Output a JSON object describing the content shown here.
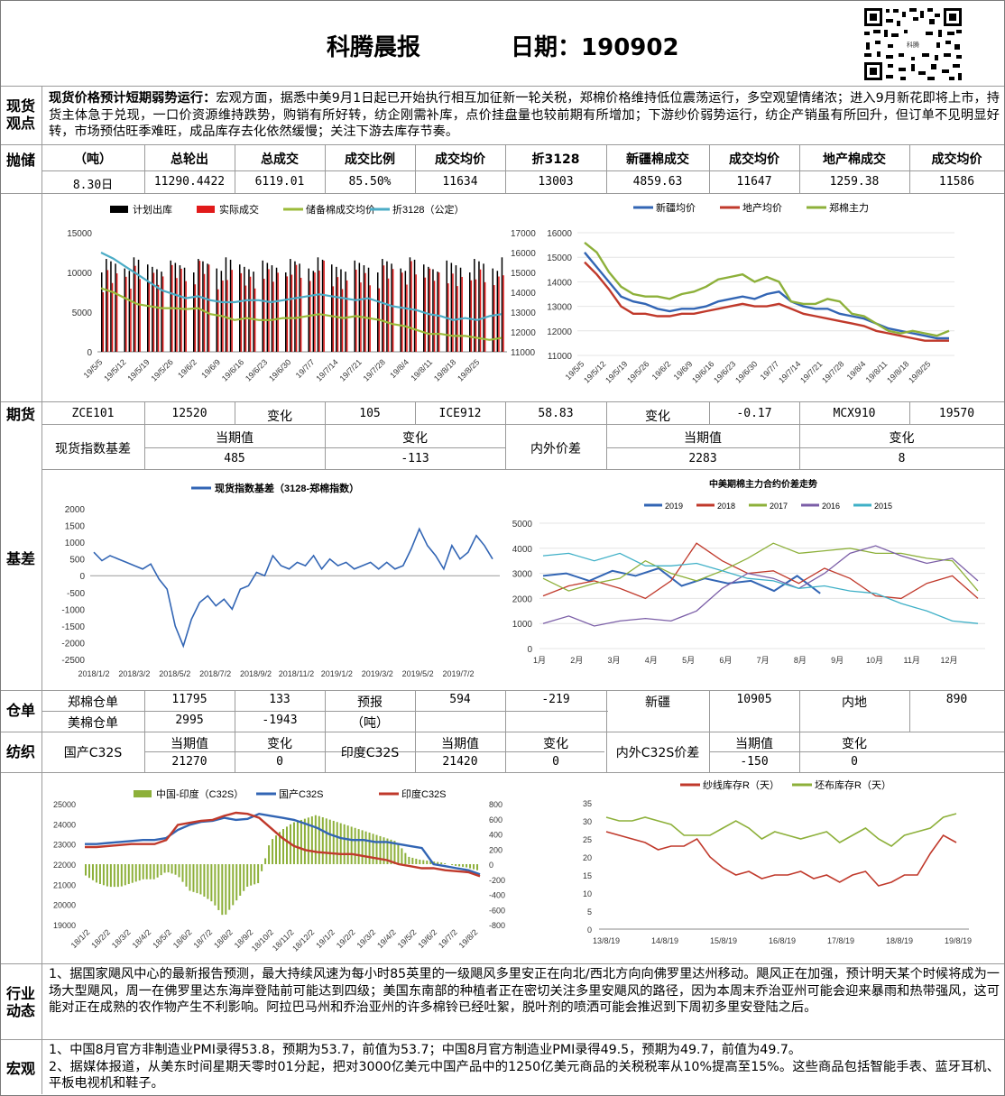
{
  "header": {
    "title": "科腾晨报",
    "date_label": "日期：",
    "date": "190902",
    "qr_caption": "科腾"
  },
  "sections": {
    "spot": [
      "现货",
      "观点"
    ],
    "storage": "抛储",
    "futures": "期货",
    "basis": "基差",
    "warrant": "仓单",
    "textile": "纺织",
    "industry": [
      "行业",
      "动态"
    ],
    "macro": "宏观"
  },
  "spot_view": {
    "bold": "现货价格预计短期弱势运行：",
    "text": "宏观方面，据悉中美9月1日起已开始执行相互加征新一轮关税，郑棉价格维持低位震荡运行，多空观望情绪浓；进入9月新花即将上市，持货主体急于兑现，一口价资源维持跌势，购销有所好转，纺企刚需补库，点价挂盘量也较前期有所增加；下游纱价弱势运行，纺企产销虽有所回升，但订单不见明显好转，市场预估旺季难旺，成品库存去化依然缓慢；关注下游去库存节奏。"
  },
  "storage": {
    "headers": [
      "（吨）",
      "总轮出",
      "总成交",
      "成交比例",
      "成交均价",
      "折3128",
      "新疆棉成交",
      "成交均价",
      "地产棉成交",
      "成交均价"
    ],
    "row": [
      "8.30日",
      "11290.4422",
      "6119.01",
      "85.50%",
      "11634",
      "13003",
      "4859.63",
      "11647",
      "1259.38",
      "11586"
    ]
  },
  "chart_data": [
    {
      "type": "bar",
      "legend": [
        "计划出库",
        "实际成交",
        "储备棉成交均价",
        "折3128（公定）"
      ],
      "x_ticks": [
        "19/5/5",
        "19/5/12",
        "19/5/19",
        "19/5/26",
        "19/6/2",
        "19/6/9",
        "19/6/16",
        "19/6/23",
        "19/6/30",
        "19/7/7",
        "19/7/14",
        "19/7/21",
        "19/7/28",
        "19/8/4",
        "19/8/11",
        "19/8/18",
        "19/8/25"
      ],
      "y_left": [
        0,
        5000,
        10000,
        15000
      ],
      "y_right": [
        11000,
        12000,
        13000,
        14000,
        15000,
        16000,
        17000
      ],
      "series": [
        {
          "name": "储备棉成交均价",
          "axis": "right",
          "values": [
            14200,
            14000,
            13700,
            13400,
            13300,
            13200,
            13200,
            13150,
            13200,
            12900,
            12800,
            12600,
            12700,
            12600,
            12600,
            12700,
            12700,
            12800,
            12900,
            12800,
            12700,
            12800,
            12700,
            12600,
            12400,
            12300,
            12100,
            11900,
            11900,
            11800,
            11800,
            11700,
            11600,
            11700
          ]
        },
        {
          "name": "折3128（公定）",
          "axis": "right",
          "values": [
            16000,
            15700,
            15300,
            14900,
            14500,
            14100,
            13900,
            13700,
            13800,
            13600,
            13500,
            13500,
            13600,
            13600,
            13500,
            13600,
            13700,
            13800,
            13900,
            13800,
            13700,
            13600,
            13700,
            13500,
            13300,
            13200,
            13100,
            12900,
            12800,
            12600,
            12700,
            12600,
            12800,
            12900
          ]
        }
      ]
    },
    {
      "type": "line",
      "legend": [
        "新疆均价",
        "地产均价",
        "郑棉主力"
      ],
      "x_ticks": [
        "19/5/5",
        "19/5/12",
        "19/5/19",
        "19/5/26",
        "19/6/2",
        "19/6/9",
        "19/6/16",
        "19/6/23",
        "19/6/30",
        "19/7/7",
        "19/7/14",
        "19/7/21",
        "19/7/28",
        "19/8/4",
        "19/8/11",
        "19/8/18",
        "19/8/25"
      ],
      "y": [
        11000,
        11500,
        12000,
        12500,
        13000,
        13500,
        14000,
        14500,
        15000,
        15500,
        16000
      ],
      "series": [
        {
          "name": "新疆均价",
          "values": [
            15200,
            14600,
            14000,
            13400,
            13200,
            13100,
            12900,
            12800,
            12900,
            12900,
            13000,
            13200,
            13300,
            13400,
            13300,
            13500,
            13600,
            13200,
            13000,
            12900,
            12900,
            12700,
            12600,
            12500,
            12300,
            12100,
            12000,
            11900,
            11800,
            11700,
            11700
          ]
        },
        {
          "name": "地产均价",
          "values": [
            14800,
            14300,
            13700,
            13000,
            12700,
            12700,
            12600,
            12600,
            12700,
            12700,
            12800,
            12900,
            13000,
            13100,
            13000,
            13000,
            13100,
            12900,
            12700,
            12600,
            12500,
            12400,
            12300,
            12200,
            12000,
            11900,
            11800,
            11700,
            11600,
            11600,
            11600
          ]
        },
        {
          "name": "郑棉主力",
          "values": [
            15600,
            15200,
            14400,
            13800,
            13500,
            13400,
            13400,
            13300,
            13500,
            13600,
            13800,
            14100,
            14200,
            14300,
            14000,
            14200,
            14000,
            13200,
            13100,
            13100,
            13300,
            13200,
            12700,
            12600,
            12300,
            12000,
            11900,
            12000,
            11900,
            11800,
            12000
          ]
        }
      ]
    },
    {
      "type": "line",
      "title": "现货指数基差（3128-郑棉指数）",
      "x_ticks": [
        "2018/1/2",
        "2018/3/2",
        "2018/5/2",
        "2018/7/2",
        "2018/9/2",
        "2018/11/2",
        "2019/1/2",
        "2019/3/2",
        "2019/5/2",
        "2019/7/2"
      ],
      "y": [
        -2500,
        -2000,
        -1500,
        -1000,
        -500,
        0,
        500,
        1000,
        1500,
        2000
      ],
      "series": [
        {
          "name": "现货指数基差（3128-郑棉指数）",
          "values": [
            700,
            450,
            600,
            500,
            400,
            300,
            200,
            350,
            -100,
            -400,
            -1500,
            -2100,
            -1300,
            -800,
            -600,
            -900,
            -700,
            -1000,
            -400,
            -300,
            100,
            0,
            600,
            300,
            200,
            400,
            300,
            600,
            200,
            500,
            300,
            400,
            200,
            300,
            400,
            200,
            400,
            200,
            300,
            800,
            1400,
            900,
            600,
            200,
            900,
            500,
            700,
            1200,
            900,
            500
          ]
        }
      ]
    },
    {
      "type": "line",
      "title": "中美期棉主力合约价差走势",
      "x_ticks": [
        "1月",
        "2月",
        "3月",
        "4月",
        "5月",
        "6月",
        "7月",
        "8月",
        "9月",
        "10月",
        "11月",
        "12月"
      ],
      "y": [
        0,
        1000,
        2000,
        3000,
        4000,
        5000
      ],
      "series": [
        {
          "name": "2019",
          "values": [
            2900,
            3000,
            2700,
            3100,
            2900,
            3200,
            2500,
            2800,
            2600,
            2700,
            2300,
            2900,
            2200
          ]
        },
        {
          "name": "2018",
          "values": [
            2100,
            2500,
            2700,
            2400,
            2000,
            2700,
            4200,
            3500,
            3000,
            3100,
            2600,
            3200,
            2800,
            2100,
            2000,
            2600,
            2900,
            2000
          ]
        },
        {
          "name": "2017",
          "values": [
            2800,
            2300,
            2600,
            2800,
            3500,
            3000,
            2700,
            3100,
            3600,
            4200,
            3800,
            3900,
            4000,
            3800,
            3800,
            3600,
            3500,
            2300
          ]
        },
        {
          "name": "2016",
          "values": [
            1000,
            1300,
            900,
            1100,
            1200,
            1100,
            1500,
            2400,
            3000,
            2800,
            2400,
            3000,
            3800,
            4100,
            3700,
            3400,
            3600,
            2700
          ]
        },
        {
          "name": "2015",
          "values": [
            3700,
            3800,
            3500,
            3800,
            3300,
            3300,
            3400,
            3100,
            2800,
            2700,
            2400,
            2500,
            2300,
            2200,
            1800,
            1500,
            1100,
            1000
          ]
        }
      ]
    },
    {
      "type": "bar",
      "legend": [
        "中国-印度（C32S）",
        "国产C32S",
        "印度C32S"
      ],
      "x_ticks": [
        "18/1/2",
        "18/2/2",
        "18/3/2",
        "18/4/2",
        "18/5/2",
        "18/6/2",
        "18/7/2",
        "18/8/2",
        "18/9/2",
        "18/10/2",
        "18/11/2",
        "18/12/2",
        "19/1/2",
        "19/2/2",
        "19/3/2",
        "19/4/2",
        "19/5/2",
        "19/6/2",
        "19/7/2",
        "19/8/2"
      ],
      "y_left": [
        19000,
        20000,
        21000,
        22000,
        23000,
        24000,
        25000
      ],
      "y_right": [
        -800,
        -600,
        -400,
        -200,
        0,
        200,
        400,
        600,
        800
      ],
      "series": [
        {
          "name": "国产C32S",
          "values": [
            23000,
            23000,
            23050,
            23100,
            23150,
            23200,
            23200,
            23300,
            23700,
            23950,
            24100,
            24150,
            24300,
            24200,
            24250,
            24500,
            24400,
            24300,
            24200,
            24000,
            23800,
            23500,
            23300,
            23200,
            23200,
            23100,
            23100,
            23000,
            22900,
            22800,
            22000,
            21900,
            21800,
            21700,
            21500
          ]
        },
        {
          "name": "印度C32S",
          "values": [
            22850,
            22850,
            22900,
            22950,
            23000,
            23000,
            23000,
            23200,
            23950,
            24050,
            24150,
            24200,
            24400,
            24550,
            24500,
            24300,
            23800,
            23300,
            22900,
            22700,
            22600,
            22550,
            22500,
            22500,
            22400,
            22300,
            22200,
            22000,
            21900,
            21800,
            21800,
            21700,
            21650,
            21600,
            21400
          ]
        },
        {
          "name": "中国-印度（C32S）",
          "values": [
            -150,
            -250,
            -300,
            -300,
            -250,
            -200,
            -200,
            -100,
            -150,
            -350,
            -400,
            -500,
            -700,
            -500,
            -300,
            -250,
            300,
            450,
            550,
            600,
            650,
            600,
            550,
            500,
            450,
            400,
            350,
            300,
            100,
            60,
            40,
            20,
            -20,
            -40,
            -80
          ]
        }
      ]
    },
    {
      "type": "line",
      "legend": [
        "纱线库存R（天）",
        "坯布库存R（天）"
      ],
      "x_ticks": [
        "13/8/19",
        "14/8/19",
        "15/8/19",
        "16/8/19",
        "17/8/19",
        "18/8/19",
        "19/8/19"
      ],
      "y": [
        0,
        5,
        10,
        15,
        20,
        25,
        30,
        35
      ],
      "series": [
        {
          "name": "纱线库存R（天）",
          "values": [
            27,
            26,
            25,
            24,
            22,
            23,
            23,
            25,
            20,
            17,
            15,
            16,
            14,
            15,
            15,
            16,
            14,
            15,
            13,
            15,
            16,
            12,
            13,
            15,
            15,
            21,
            26,
            24
          ]
        },
        {
          "name": "坯布库存R（天）",
          "values": [
            31,
            30,
            30,
            31,
            30,
            29,
            26,
            26,
            26,
            28,
            30,
            28,
            25,
            27,
            26,
            25,
            26,
            27,
            24,
            26,
            28,
            25,
            23,
            26,
            27,
            28,
            31,
            32
          ]
        }
      ]
    }
  ],
  "futures": {
    "row": [
      "ZCE101",
      "12520",
      "变化",
      "105",
      "ICE912",
      "58.83",
      "变化",
      "-0.17",
      "MCX910",
      "19570"
    ],
    "basis_label": "现货指数基差",
    "cur": "当期值",
    "chg": "变化",
    "basis_cur": "485",
    "basis_chg": "-113",
    "spread_label": "内外价差",
    "spread_cur": "2283",
    "spread_chg": "8"
  },
  "warrant": {
    "row1": [
      "郑棉仓单",
      "11795",
      "133",
      "预报",
      "594",
      "-219",
      "新疆",
      "10905",
      "内地",
      "890"
    ],
    "row2": [
      "美棉仓单",
      "2995",
      "-1943",
      "（吨）"
    ]
  },
  "textile": {
    "row1": [
      "国产C32S",
      "当期值",
      "变化",
      "印度C32S",
      "当期值",
      "变化",
      "内外C32S价差",
      "当期值",
      "变化"
    ],
    "row2": [
      "21270",
      "0",
      "21420",
      "0",
      "-150",
      "0"
    ]
  },
  "industry": "1、据国家飓风中心的最新报告预测，最大持续风速为每小时85英里的一级飓风多里安正在向北/西北方向向佛罗里达州移动。飓风正在加强，预计明天某个时候将成为一场大型飓风，周一在佛罗里达东海岸登陆前可能达到四级；美国东南部的种植者正在密切关注多里安飓风的路径，因为本周末乔治亚州可能会迎来暴雨和热带强风，这可能对正在成熟的农作物产生不利影响。阿拉巴马州和乔治亚州的许多棉铃已经吐絮，脱叶剂的喷洒可能会推迟到下周初多里安登陆之后。",
  "macro": [
    "1、中国8月官方非制造业PMI录得53.8，预期为53.7，前值为53.7；中国8月官方制造业PMI录得49.5，预期为49.7，前值为49.7。",
    "2、据媒体报道，从美东时间星期天零时01分起，把对3000亿美元中国产品中的1250亿美元商品的关税税率从10%提高至15%。这些商品包括智能手表、蓝牙耳机、平板电视机和鞋子。"
  ],
  "colors": {
    "black": "#000000",
    "red": "#e11a1a",
    "olive": "#9bbb3a",
    "cyan": "#4bacc6",
    "blue": "#3265b4",
    "darkred": "#c0392b",
    "green": "#8db03a",
    "purple": "#7b5ea7",
    "teal": "#3fb0c7"
  }
}
